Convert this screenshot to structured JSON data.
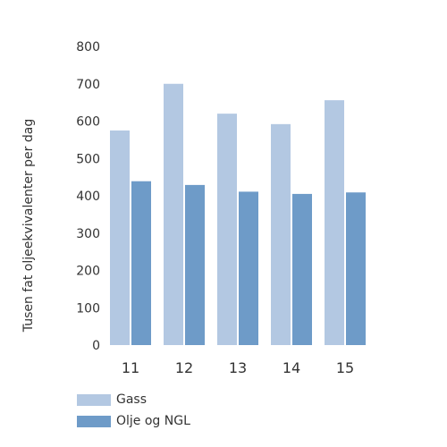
{
  "chart_data": {
    "type": "bar",
    "title": "",
    "xlabel": "",
    "ylabel": "Tusen fat oljeekvivalenter per dag",
    "categories": [
      "11",
      "12",
      "13",
      "14",
      "15"
    ],
    "series": [
      {
        "name": "Gass",
        "color": "#b3c8e2",
        "values": [
          575,
          700,
          620,
          592,
          656
        ]
      },
      {
        "name": "Olje og NGL",
        "color": "#6e9bc8",
        "values": [
          439,
          429,
          411,
          405,
          409
        ]
      }
    ],
    "ylim": [
      0,
      800
    ],
    "yticks": [
      "0",
      "100",
      "200",
      "300",
      "400",
      "500",
      "600",
      "700",
      "800"
    ],
    "grid": false,
    "legend_position": "bottom-left"
  }
}
